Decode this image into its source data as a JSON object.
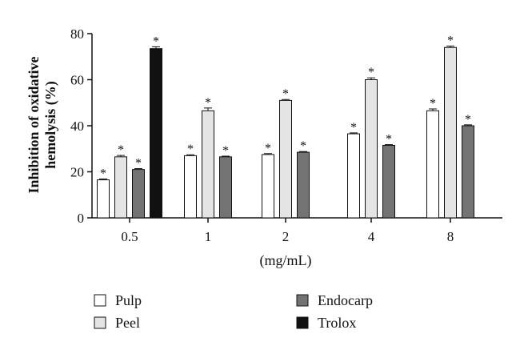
{
  "chart_data": {
    "type": "bar",
    "ylabel_line1": "Inhibition of oxidative",
    "ylabel_line2": "hemolysis (%)",
    "xlabel": "(mg/mL)",
    "ylim": [
      0,
      80
    ],
    "yticks": [
      0,
      20,
      40,
      60,
      80
    ],
    "categories": [
      "0.5",
      "1",
      "2",
      "4",
      "8"
    ],
    "series": [
      {
        "name": "Pulp",
        "color": "#ffffff",
        "values": [
          16.5,
          27,
          27.5,
          36.5,
          46.5
        ],
        "errors": [
          0.4,
          0.4,
          0.4,
          0.4,
          0.8
        ]
      },
      {
        "name": "Peel",
        "color": "#e4e4e4",
        "values": [
          26.5,
          46.5,
          51,
          60,
          74
        ],
        "errors": [
          0.6,
          1.2,
          0.4,
          0.8,
          0.6
        ]
      },
      {
        "name": "Endocarp",
        "color": "#737373",
        "values": [
          21,
          26.5,
          28.5,
          31.5,
          40
        ],
        "errors": [
          0.4,
          0.3,
          0.3,
          0.3,
          0.4
        ]
      },
      {
        "name": "Trolox",
        "color": "#111111",
        "values": [
          73.5,
          null,
          null,
          null,
          null
        ],
        "errors": [
          0.8,
          null,
          null,
          null,
          null
        ]
      }
    ],
    "significance_marker": "*",
    "legend_placement": "bottom"
  }
}
